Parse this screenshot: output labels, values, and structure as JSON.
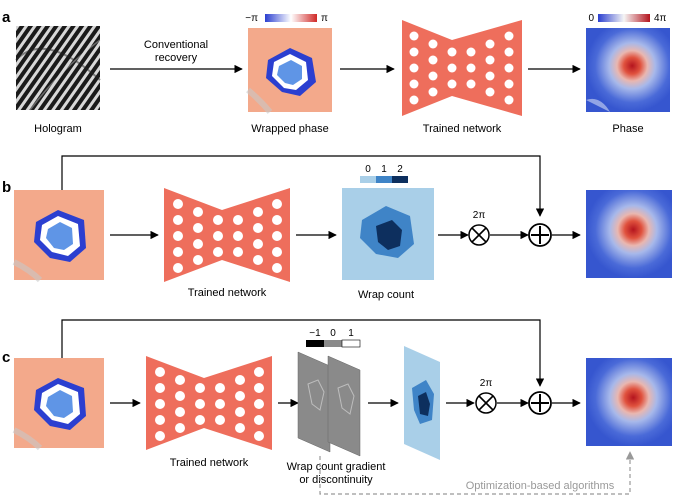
{
  "panels": {
    "a": {
      "letter": "a",
      "hologram_label": "Hologram",
      "arrow_label_line1": "Conventional",
      "arrow_label_line2": "recovery",
      "wrapped_label": "Wrapped phase",
      "network_label": "Trained network",
      "phase_label": "Phase",
      "wrapped_scale_min": "−π",
      "wrapped_scale_max": "π",
      "phase_scale_min": "0",
      "phase_scale_max": "4π"
    },
    "b": {
      "letter": "b",
      "network_label": "Trained network",
      "wrap_label": "Wrap count",
      "count_0": "0",
      "count_1": "1",
      "count_2": "2",
      "two_pi": "2π"
    },
    "c": {
      "letter": "c",
      "network_label": "Trained network",
      "gradient_label_line1": "Wrap count gradient",
      "gradient_label_line2": "or discontinuity",
      "grad_scale_neg": "−1",
      "grad_scale_zero": "0",
      "grad_scale_pos": "1",
      "two_pi": "2π",
      "optimization_label": "Optimization-based algorithms"
    }
  },
  "colors": {
    "network": "#ee6e5c",
    "network_holes": "#ffffff",
    "phase_blue": "#3d5fd6",
    "phase_red": "#d93a2b",
    "wrapped_bg": "#f4a488",
    "wrap_light": "#a9cfe8",
    "wrap_mid": "#3f84c7",
    "wrap_dark": "#0d2f5e",
    "gradient_gray": "#8a8a8a",
    "dashed_gray": "#999999",
    "arrow": "#000000"
  },
  "icons": [
    "multiply-circle-icon",
    "plus-circle-icon",
    "arrow-icon"
  ]
}
